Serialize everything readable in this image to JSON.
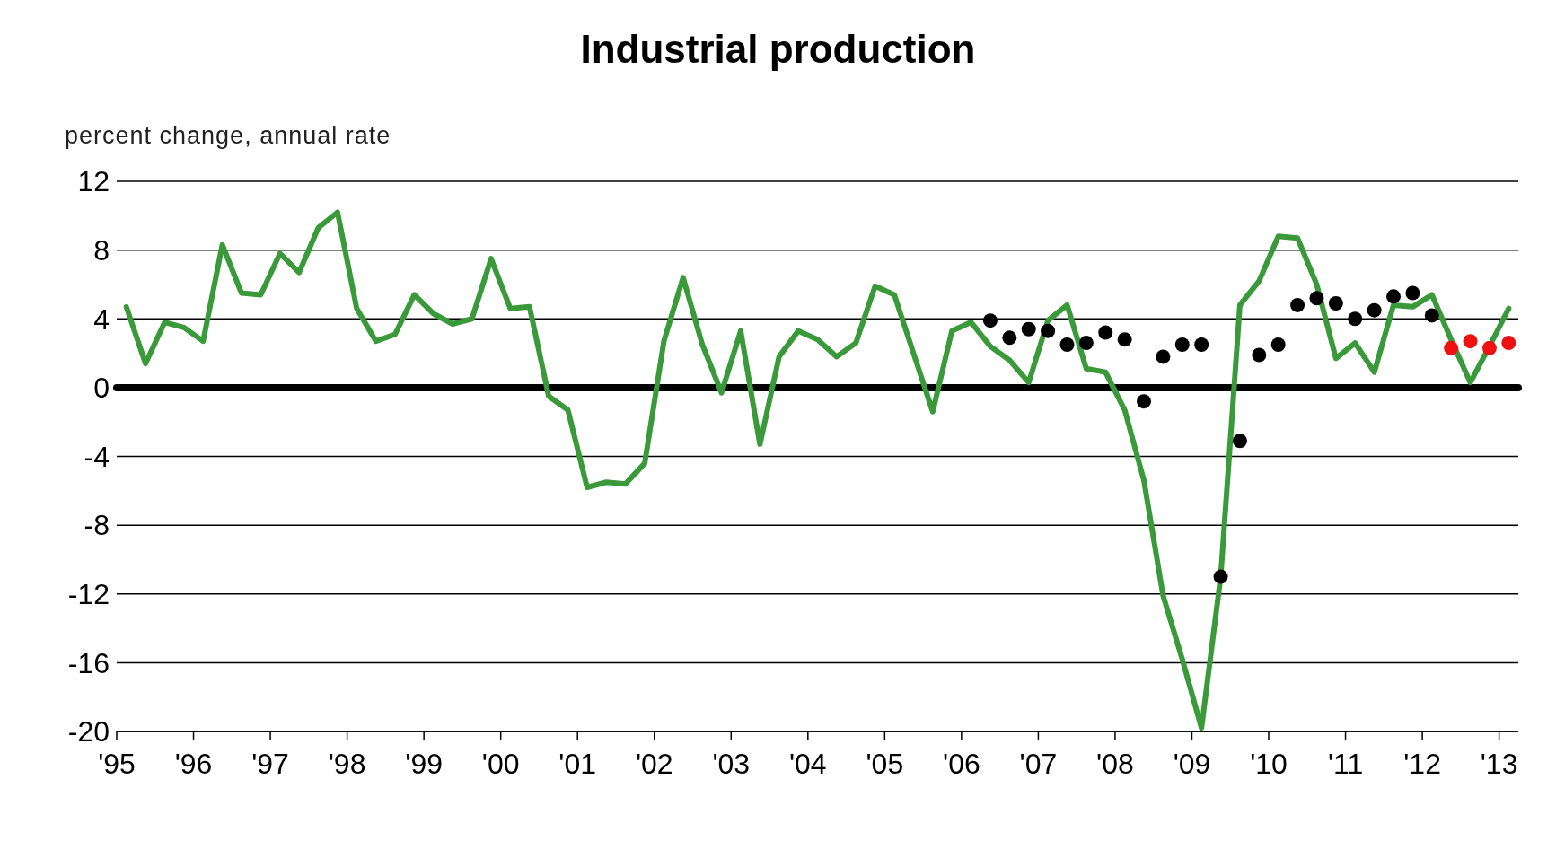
{
  "chart_data": {
    "type": "line",
    "title": "Industrial production",
    "ylabel": "percent change, annual rate",
    "xlim": [
      1995,
      2013.25
    ],
    "xticks": [
      {
        "value": 1995,
        "label": "'95"
      },
      {
        "value": 1996,
        "label": "'96"
      },
      {
        "value": 1997,
        "label": "'97"
      },
      {
        "value": 1998,
        "label": "'98"
      },
      {
        "value": 1999,
        "label": "'99"
      },
      {
        "value": 2000,
        "label": "'00"
      },
      {
        "value": 2001,
        "label": "'01"
      },
      {
        "value": 2002,
        "label": "'02"
      },
      {
        "value": 2003,
        "label": "'03"
      },
      {
        "value": 2004,
        "label": "'04"
      },
      {
        "value": 2005,
        "label": "'05"
      },
      {
        "value": 2006,
        "label": "'06"
      },
      {
        "value": 2007,
        "label": "'07"
      },
      {
        "value": 2008,
        "label": "'08"
      },
      {
        "value": 2009,
        "label": "'09"
      },
      {
        "value": 2010,
        "label": "'10"
      },
      {
        "value": 2011,
        "label": "'11"
      },
      {
        "value": 2012,
        "label": "'12"
      },
      {
        "value": 2013,
        "label": "'13"
      }
    ],
    "ylim": [
      -20,
      12
    ],
    "yticks": [
      -20,
      -16,
      -12,
      -8,
      -4,
      0,
      4,
      8,
      12
    ],
    "grid": "y",
    "ref_lines": [
      {
        "axis": "y",
        "value": 0,
        "color": "#000000"
      }
    ],
    "series": [
      {
        "color": "#3a9a3a",
        "marker": "none",
        "line_style": "solid",
        "x": [
          1995.125,
          1995.375,
          1995.625,
          1995.875,
          1996.125,
          1996.375,
          1996.625,
          1996.875,
          1997.125,
          1997.375,
          1997.625,
          1997.875,
          1998.125,
          1998.375,
          1998.625,
          1998.875,
          1999.125,
          1999.375,
          1999.625,
          1999.875,
          2000.125,
          2000.375,
          2000.625,
          2000.875,
          2001.125,
          2001.375,
          2001.625,
          2001.875,
          2002.125,
          2002.375,
          2002.625,
          2002.875,
          2003.125,
          2003.375,
          2003.625,
          2003.875,
          2004.125,
          2004.375,
          2004.625,
          2004.875,
          2005.125,
          2005.375,
          2005.625,
          2005.875,
          2006.125,
          2006.375,
          2006.625,
          2006.875,
          2007.125,
          2007.375,
          2007.625,
          2007.875,
          2008.125,
          2008.375,
          2008.625,
          2008.875,
          2009.125,
          2009.375,
          2009.625,
          2009.875,
          2010.125,
          2010.375,
          2010.625,
          2010.875,
          2011.125,
          2011.375,
          2011.625,
          2011.875,
          2012.125,
          2012.375,
          2012.625,
          2012.875,
          2013.125
        ],
        "values": [
          4.7,
          1.4,
          3.8,
          3.5,
          2.7,
          8.3,
          5.5,
          5.4,
          7.8,
          6.7,
          9.3,
          10.2,
          4.6,
          2.7,
          3.1,
          5.4,
          4.3,
          3.7,
          4.0,
          7.5,
          4.6,
          4.7,
          -0.5,
          -1.3,
          -5.8,
          -5.5,
          -5.6,
          -4.4,
          2.7,
          6.4,
          2.5,
          -0.3,
          3.3,
          -3.3,
          1.8,
          3.3,
          2.8,
          1.8,
          2.6,
          5.9,
          5.4,
          2.0,
          -1.4,
          3.3,
          3.8,
          2.4,
          1.6,
          0.3,
          3.9,
          4.8,
          1.1,
          0.9,
          -1.3,
          -5.4,
          -12.1,
          -15.8,
          -19.8,
          -11.0,
          4.8,
          6.2,
          8.8,
          8.7,
          6.0,
          1.7,
          2.6,
          0.9,
          4.8,
          4.7,
          5.4,
          2.8,
          0.3,
          2.4,
          4.6
        ]
      },
      {
        "type": "scatter",
        "color": "#000000",
        "marker": "circle",
        "x": [
          2006.375,
          2006.625,
          2006.875,
          2007.125,
          2007.375,
          2007.625,
          2007.875,
          2008.125,
          2008.375,
          2008.625,
          2008.875,
          2009.125,
          2009.375,
          2009.625,
          2009.875,
          2010.125,
          2010.375,
          2010.625,
          2010.875,
          2011.125,
          2011.375,
          2011.625,
          2011.875,
          2012.125
        ],
        "values": [
          3.9,
          2.9,
          3.4,
          3.3,
          2.5,
          2.6,
          3.2,
          2.8,
          -0.8,
          1.8,
          2.5,
          2.5,
          -11.0,
          -3.1,
          1.9,
          2.5,
          4.8,
          5.2,
          4.9,
          4.0,
          4.5,
          5.3,
          5.5,
          4.2
        ]
      },
      {
        "type": "scatter",
        "color": "#ee1111",
        "marker": "circle",
        "x": [
          2012.375,
          2012.625,
          2012.875,
          2013.125
        ],
        "values": [
          2.3,
          2.7,
          2.3,
          2.6
        ]
      }
    ]
  }
}
